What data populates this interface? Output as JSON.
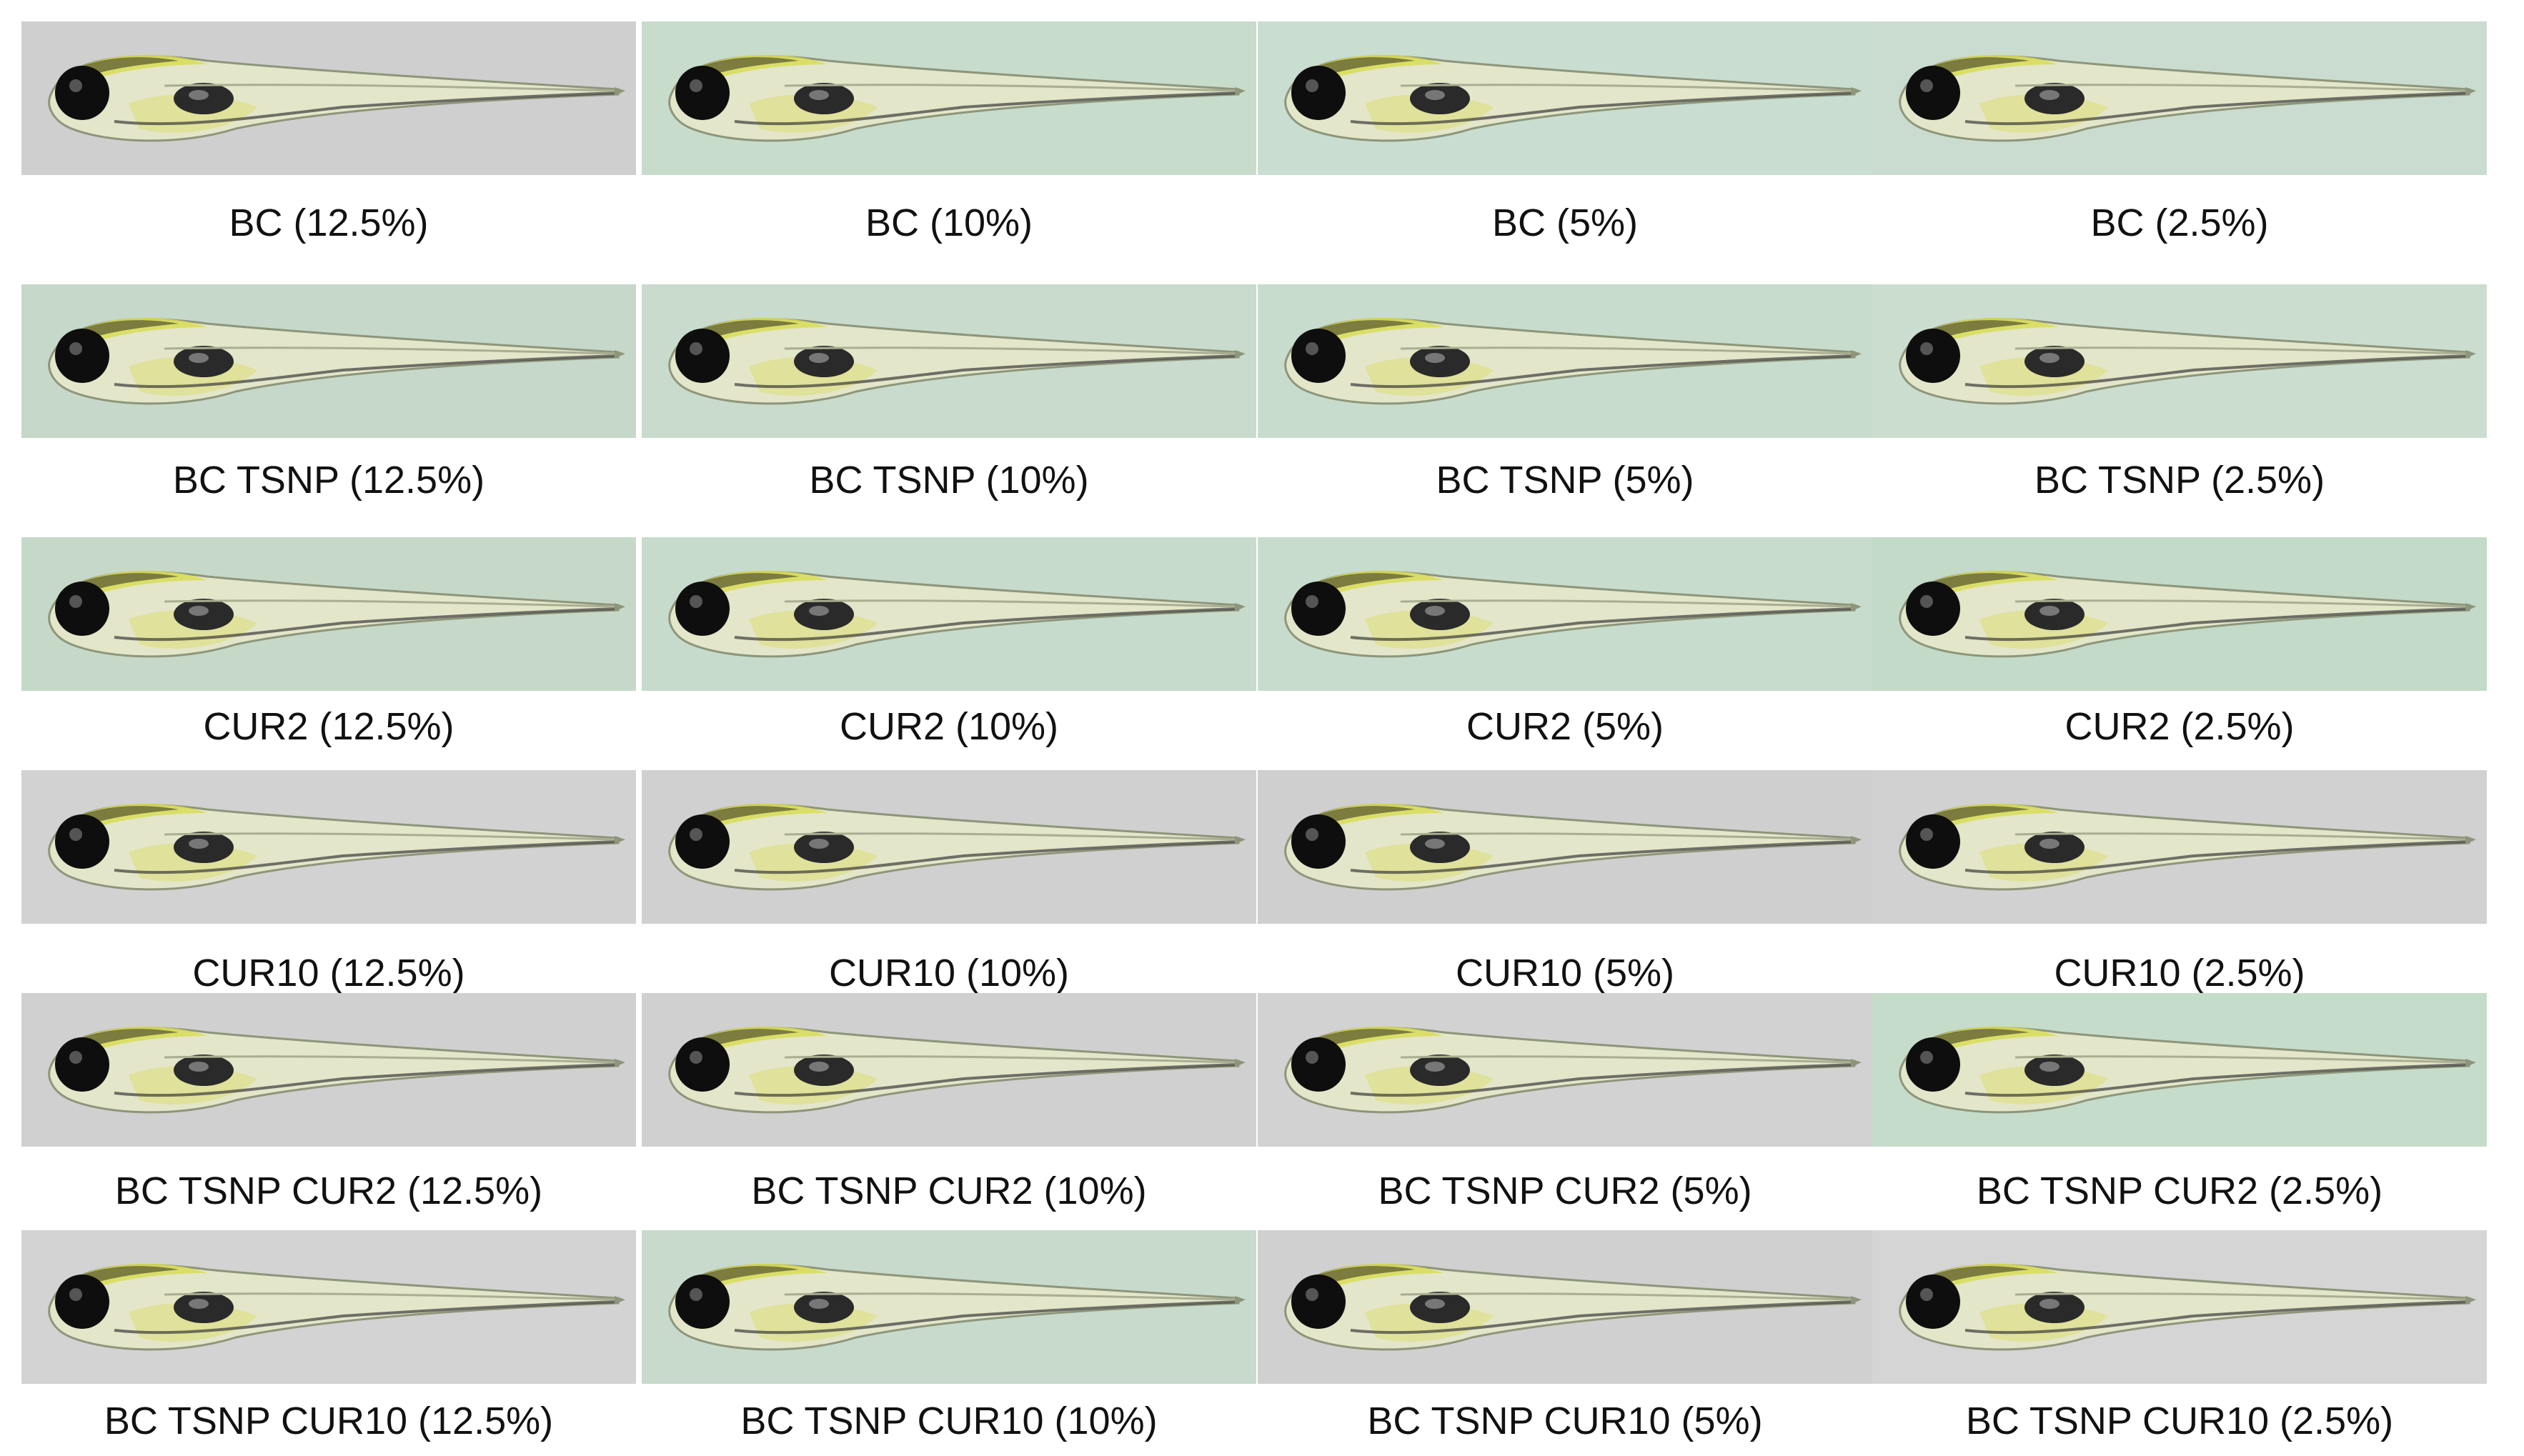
{
  "figure": {
    "rows": [
      {
        "group": "BC",
        "panels": [
          {
            "label": "BC (12.5%)",
            "bg": "#cfcfcf"
          },
          {
            "label": "BC (10%)",
            "bg": "#c8dccc"
          },
          {
            "label": "BC (5%)",
            "bg": "#c9ddd0"
          },
          {
            "label": "BC (2.5%)",
            "bg": "#cadccf"
          }
        ]
      },
      {
        "group": "BC TSNP",
        "panels": [
          {
            "label": "BC TSNP (12.5%)",
            "bg": "#c6d8c9"
          },
          {
            "label": "BC TSNP (10%)",
            "bg": "#c9dbcc"
          },
          {
            "label": "BC TSNP (5%)",
            "bg": "#c8dccd"
          },
          {
            "label": "BC TSNP (2.5%)",
            "bg": "#cbddcf"
          }
        ]
      },
      {
        "group": "CUR2",
        "panels": [
          {
            "label": "CUR2 (12.5%)",
            "bg": "#c6d9c9"
          },
          {
            "label": "CUR2 (10%)",
            "bg": "#c7dbcc"
          },
          {
            "label": "CUR2 (5%)",
            "bg": "#c8dccd"
          },
          {
            "label": "CUR2 (2.5%)",
            "bg": "#c3dac8"
          }
        ]
      },
      {
        "group": "CUR10",
        "panels": [
          {
            "label": "CUR10 (12.5%)",
            "bg": "#d2d2d2"
          },
          {
            "label": "CUR10 (10%)",
            "bg": "#d0d0d0"
          },
          {
            "label": "CUR10 (5%)",
            "bg": "#cfcfcf"
          },
          {
            "label": "CUR10 (2.5%)",
            "bg": "#d1d1d1"
          }
        ]
      },
      {
        "group": "BC TSNP CUR2",
        "panels": [
          {
            "label": "BC TSNP CUR2 (12.5%)",
            "bg": "#d0d0d0"
          },
          {
            "label": "BC TSNP CUR2 (10%)",
            "bg": "#d0d0d0"
          },
          {
            "label": "BC TSNP CUR2 (5%)",
            "bg": "#d2d2d2"
          },
          {
            "label": "BC TSNP CUR2 (2.5%)",
            "bg": "#c6dccb"
          }
        ]
      },
      {
        "group": "BC TSNP CUR10",
        "panels": [
          {
            "label": "BC TSNP CUR10 (12.5%)",
            "bg": "#d3d3d3"
          },
          {
            "label": "BC TSNP CUR10 (10%)",
            "bg": "#c8dacc"
          },
          {
            "label": "BC TSNP CUR10 (5%)",
            "bg": "#d0d0d0"
          },
          {
            "label": "BC TSNP CUR10 (2.5%)",
            "bg": "#d5d5d5"
          }
        ]
      }
    ]
  }
}
